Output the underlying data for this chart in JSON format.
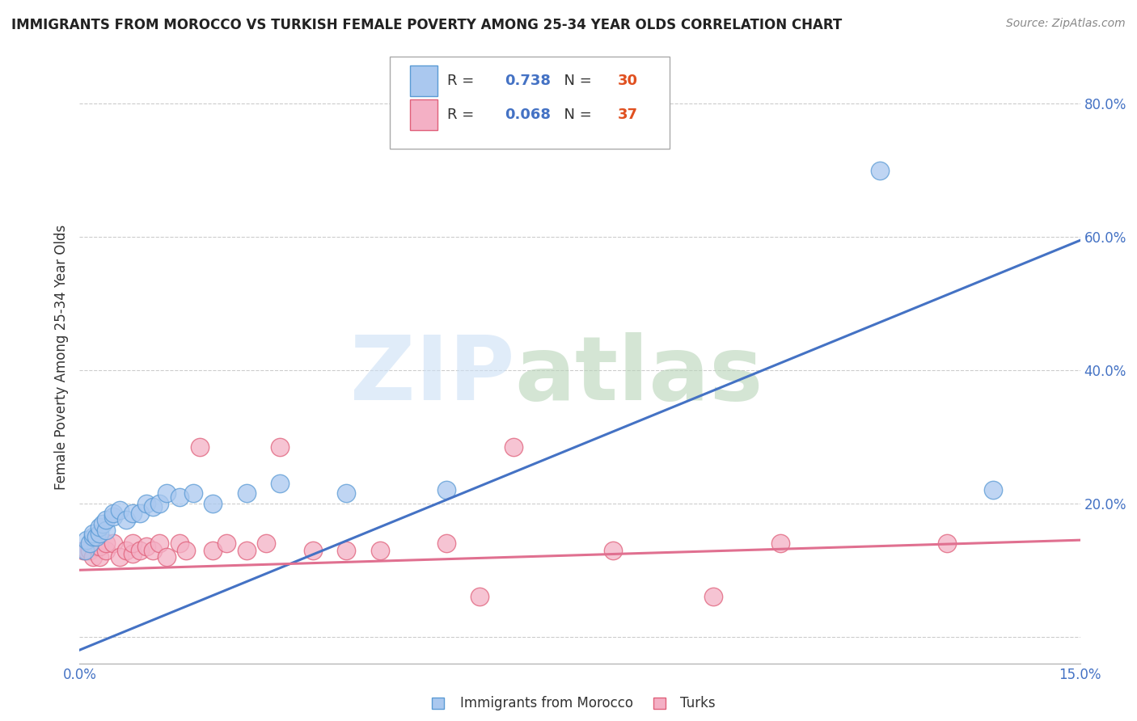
{
  "title": "IMMIGRANTS FROM MOROCCO VS TURKISH FEMALE POVERTY AMONG 25-34 YEAR OLDS CORRELATION CHART",
  "source": "Source: ZipAtlas.com",
  "ylabel": "Female Poverty Among 25-34 Year Olds",
  "xlim": [
    0.0,
    0.15
  ],
  "ylim": [
    -0.04,
    0.88
  ],
  "yticks": [
    0.0,
    0.2,
    0.4,
    0.6,
    0.8
  ],
  "ytick_labels": [
    "",
    "20.0%",
    "40.0%",
    "60.0%",
    "80.0%"
  ],
  "xtick_labels": [
    "0.0%",
    "15.0%"
  ],
  "morocco_R": 0.738,
  "morocco_N": 30,
  "turks_R": 0.068,
  "turks_N": 37,
  "morocco_color": "#aac8ef",
  "morocco_edge_color": "#5b9bd5",
  "turks_color": "#f4b0c5",
  "turks_edge_color": "#e0607a",
  "morocco_line_color": "#4472c4",
  "turks_line_color": "#e07090",
  "mor_line_x0": 0.0,
  "mor_line_y0": -0.02,
  "mor_line_x1": 0.15,
  "mor_line_y1": 0.595,
  "turk_line_x0": 0.0,
  "turk_line_y0": 0.1,
  "turk_line_x1": 0.15,
  "turk_line_y1": 0.145,
  "morocco_scatter_x": [
    0.0008,
    0.001,
    0.0015,
    0.002,
    0.002,
    0.0025,
    0.003,
    0.003,
    0.0035,
    0.004,
    0.004,
    0.005,
    0.005,
    0.006,
    0.007,
    0.008,
    0.009,
    0.01,
    0.011,
    0.012,
    0.013,
    0.015,
    0.017,
    0.02,
    0.025,
    0.03,
    0.04,
    0.055,
    0.12,
    0.137
  ],
  "morocco_scatter_y": [
    0.13,
    0.145,
    0.14,
    0.15,
    0.155,
    0.15,
    0.155,
    0.165,
    0.17,
    0.16,
    0.175,
    0.18,
    0.185,
    0.19,
    0.175,
    0.185,
    0.185,
    0.2,
    0.195,
    0.2,
    0.215,
    0.21,
    0.215,
    0.2,
    0.215,
    0.23,
    0.215,
    0.22,
    0.7,
    0.22
  ],
  "turks_scatter_x": [
    0.0005,
    0.001,
    0.0015,
    0.002,
    0.0025,
    0.003,
    0.003,
    0.004,
    0.004,
    0.005,
    0.006,
    0.007,
    0.008,
    0.008,
    0.009,
    0.01,
    0.011,
    0.012,
    0.013,
    0.015,
    0.016,
    0.018,
    0.02,
    0.022,
    0.025,
    0.028,
    0.03,
    0.035,
    0.04,
    0.045,
    0.055,
    0.06,
    0.065,
    0.08,
    0.095,
    0.105,
    0.13
  ],
  "turks_scatter_y": [
    0.13,
    0.13,
    0.13,
    0.12,
    0.135,
    0.12,
    0.135,
    0.13,
    0.14,
    0.14,
    0.12,
    0.13,
    0.125,
    0.14,
    0.13,
    0.135,
    0.13,
    0.14,
    0.12,
    0.14,
    0.13,
    0.285,
    0.13,
    0.14,
    0.13,
    0.14,
    0.285,
    0.13,
    0.13,
    0.13,
    0.14,
    0.06,
    0.285,
    0.13,
    0.06,
    0.14,
    0.14
  ]
}
